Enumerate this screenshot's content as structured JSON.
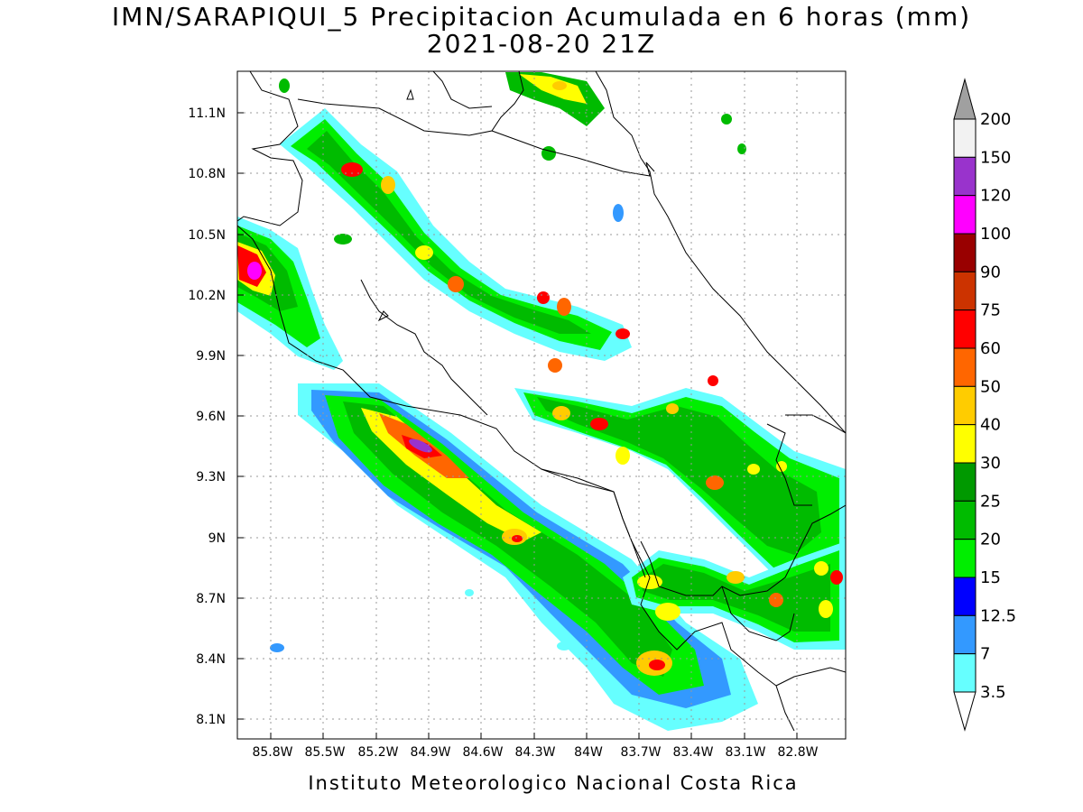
{
  "title": "IMN/SARAPIQUI_5 Precipitacion Acumulada en 6 horas (mm)",
  "subtitle": "2021-08-20 21Z",
  "credit": "Instituto Meteorologico Nacional Costa Rica",
  "map": {
    "lon_ticks": [
      "85.8W",
      "85.5W",
      "85.2W",
      "84.9W",
      "84.6W",
      "84.3W",
      "84W",
      "83.7W",
      "83.4W",
      "83.1W",
      "82.8W"
    ],
    "lat_ticks": [
      "11.1N",
      "10.8N",
      "10.5N",
      "10.2N",
      "9.9N",
      "9.6N",
      "9.3N",
      "9N",
      "8.7N",
      "8.4N",
      "8.1N"
    ]
  },
  "colorbar": {
    "levels": [
      "200",
      "150",
      "120",
      "100",
      "90",
      "75",
      "60",
      "50",
      "40",
      "30",
      "25",
      "20",
      "15",
      "12.5",
      "7",
      "3.5"
    ],
    "colors": {
      "above_200": "#a0a0a0",
      "150_200": "#f2f2f2",
      "120_150": "#9933cc",
      "100_120": "#ff00ff",
      "90_100": "#990000",
      "75_90": "#cc3300",
      "60_75": "#ff0000",
      "50_60": "#ff6600",
      "40_50": "#ffcc00",
      "30_40": "#ffff00",
      "25_30": "#009900",
      "20_25": "#00bb00",
      "15_20": "#00ee00",
      "12.5_15": "#0000ff",
      "7_12.5": "#3399ff",
      "3.5_7": "#66ffff",
      "below_3.5": "#ffffff"
    }
  }
}
